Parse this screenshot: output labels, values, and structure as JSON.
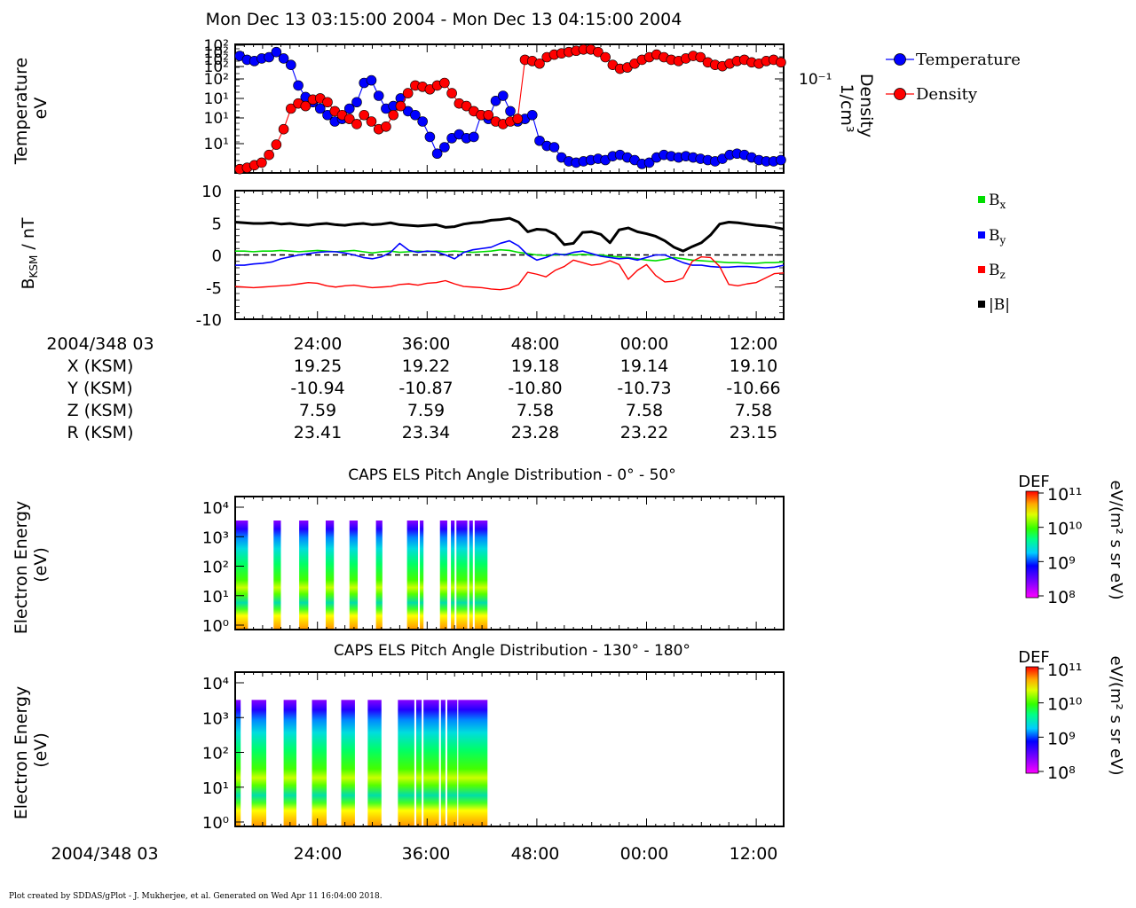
{
  "header": {
    "title": "Mon Dec 13 03:15:00 2004 - Mon Dec 13 04:15:00 2004"
  },
  "footer": {
    "credit": "Plot created by SDDAS/gPlot - J. Mukherjee, et al.  Generated on Wed Apr 11 16:04:00 2018."
  },
  "colors": {
    "temperature": "#0000ff",
    "density": "#ff0000",
    "bx": "#00dd00",
    "by": "#0000ff",
    "bz": "#ff0000",
    "btotal": "#000000"
  },
  "x_axis": {
    "tick_labels": [
      "24:00",
      "36:00",
      "48:00",
      "00:00",
      "12:00"
    ],
    "ephemeris": {
      "start_label": "2004/348 03",
      "rows": [
        {
          "label": "X (KSM)",
          "values": [
            "19.25",
            "19.22",
            "19.18",
            "19.14",
            "19.10"
          ]
        },
        {
          "label": "Y (KSM)",
          "values": [
            "-10.94",
            "-10.87",
            "-10.80",
            "-10.73",
            "-10.66"
          ]
        },
        {
          "label": "Z (KSM)",
          "values": [
            "7.59",
            "7.59",
            "7.58",
            "7.58",
            "7.58"
          ]
        },
        {
          "label": "R (KSM)",
          "values": [
            "23.41",
            "23.34",
            "23.28",
            "23.22",
            "23.15"
          ]
        }
      ]
    },
    "bottom_start_label": "2004/348 03"
  },
  "chart_data": [
    {
      "type": "scatter",
      "panel": "moments",
      "ylabel": "Temperature eV",
      "y2label": "Density 1/cm³",
      "y_tick_labels": [
        "10²",
        "10²",
        "10²",
        "10²",
        "10²",
        "10¹",
        "10¹",
        "10¹"
      ],
      "y2_tick_labels": [
        "10⁻¹"
      ],
      "x_range": [
        15,
        75
      ],
      "legend": {
        "placement": "right",
        "entries": [
          "Temperature",
          "Density"
        ]
      },
      "series": [
        {
          "name": "Temperature",
          "x": [
            15.5,
            16.3,
            17.1,
            17.9,
            18.7,
            19.5,
            20.3,
            21.1,
            21.9,
            22.7,
            23.5,
            24.3,
            25.1,
            25.9,
            26.7,
            27.5,
            28.3,
            29.1,
            29.9,
            30.7,
            31.5,
            32.3,
            33.1,
            33.9,
            34.7,
            35.5,
            36.3,
            37.1,
            37.9,
            38.7,
            39.5,
            40.3,
            41.1,
            41.9,
            42.7,
            43.5,
            44.3,
            45.1,
            45.9,
            46.7,
            47.5,
            48.3,
            49.1,
            49.9,
            50.7,
            51.5,
            52.3,
            53.1,
            53.9,
            54.7,
            55.5,
            56.3,
            57.1,
            57.9,
            58.7,
            59.5,
            60.3,
            61.1,
            61.9,
            62.7,
            63.5,
            64.3,
            65.1,
            65.9,
            66.7,
            67.5,
            68.3,
            69.1,
            69.9,
            70.7,
            71.5,
            72.3,
            73.1,
            73.9,
            74.7
          ],
          "y_rel": [
            0.09,
            0.12,
            0.13,
            0.11,
            0.1,
            0.06,
            0.11,
            0.16,
            0.32,
            0.41,
            0.45,
            0.5,
            0.55,
            0.6,
            0.58,
            0.5,
            0.45,
            0.3,
            0.28,
            0.4,
            0.5,
            0.48,
            0.42,
            0.52,
            0.55,
            0.6,
            0.72,
            0.85,
            0.8,
            0.73,
            0.7,
            0.73,
            0.72,
            0.55,
            0.58,
            0.44,
            0.4,
            0.52,
            0.6,
            0.58,
            0.55,
            0.75,
            0.79,
            0.8,
            0.88,
            0.91,
            0.92,
            0.91,
            0.9,
            0.89,
            0.9,
            0.87,
            0.86,
            0.88,
            0.9,
            0.93,
            0.92,
            0.88,
            0.86,
            0.87,
            0.88,
            0.87,
            0.88,
            0.89,
            0.9,
            0.91,
            0.89,
            0.86,
            0.85,
            0.86,
            0.88,
            0.9,
            0.91,
            0.91,
            0.9
          ]
        },
        {
          "name": "Density",
          "x": [
            15.5,
            16.3,
            17.1,
            17.9,
            18.7,
            19.5,
            20.3,
            21.1,
            21.9,
            22.7,
            23.5,
            24.3,
            25.1,
            25.9,
            26.7,
            27.5,
            28.3,
            29.1,
            29.9,
            30.7,
            31.5,
            32.3,
            33.1,
            33.9,
            34.7,
            35.5,
            36.3,
            37.1,
            37.9,
            38.7,
            39.5,
            40.3,
            41.1,
            41.9,
            42.7,
            43.5,
            44.3,
            45.1,
            45.9,
            46.7,
            47.5,
            48.3,
            49.1,
            49.9,
            50.7,
            51.5,
            52.3,
            53.1,
            53.9,
            54.7,
            55.5,
            56.3,
            57.1,
            57.9,
            58.7,
            59.5,
            60.3,
            61.1,
            61.9,
            62.7,
            63.5,
            64.3,
            65.1,
            65.9,
            66.7,
            67.5,
            68.3,
            69.1,
            69.9,
            70.7,
            71.5,
            72.3,
            73.1,
            73.9,
            74.7
          ],
          "y_rel": [
            0.97,
            0.96,
            0.94,
            0.92,
            0.86,
            0.78,
            0.66,
            0.5,
            0.46,
            0.48,
            0.43,
            0.42,
            0.45,
            0.52,
            0.55,
            0.58,
            0.62,
            0.55,
            0.6,
            0.66,
            0.64,
            0.55,
            0.48,
            0.38,
            0.32,
            0.33,
            0.35,
            0.32,
            0.3,
            0.38,
            0.46,
            0.48,
            0.52,
            0.55,
            0.55,
            0.6,
            0.62,
            0.6,
            0.58,
            0.12,
            0.13,
            0.15,
            0.1,
            0.08,
            0.07,
            0.06,
            0.05,
            0.04,
            0.04,
            0.06,
            0.1,
            0.16,
            0.19,
            0.18,
            0.15,
            0.12,
            0.1,
            0.08,
            0.1,
            0.12,
            0.13,
            0.11,
            0.09,
            0.1,
            0.14,
            0.16,
            0.17,
            0.15,
            0.13,
            0.12,
            0.14,
            0.15,
            0.13,
            0.12,
            0.14
          ]
        }
      ]
    },
    {
      "type": "line",
      "panel": "magnetic-field",
      "ylabel": "B_KSM / nT",
      "ylim": [
        -10,
        10
      ],
      "y_tick_labels": [
        "10",
        "5",
        "0",
        "-5",
        "-10"
      ],
      "legend": {
        "placement": "right",
        "entries": [
          "Bx",
          "By",
          "Bz",
          "|B|"
        ]
      },
      "x": [
        15,
        16,
        17,
        18,
        19,
        20,
        21,
        22,
        23,
        24,
        25,
        26,
        27,
        28,
        29,
        30,
        31,
        32,
        33,
        34,
        35,
        36,
        37,
        38,
        39,
        40,
        41,
        42,
        43,
        44,
        45,
        46,
        47,
        48,
        49,
        50,
        51,
        52,
        53,
        54,
        55,
        56,
        57,
        58,
        59,
        60,
        61,
        62,
        63,
        64,
        65,
        66,
        67,
        68,
        69,
        70,
        71,
        72,
        73,
        74,
        75
      ],
      "series": [
        {
          "name": "Bx",
          "values": [
            0.6,
            0.6,
            0.5,
            0.6,
            0.6,
            0.7,
            0.6,
            0.5,
            0.6,
            0.7,
            0.6,
            0.5,
            0.6,
            0.7,
            0.5,
            0.3,
            0.5,
            0.6,
            0.4,
            0.5,
            0.6,
            0.5,
            0.6,
            0.5,
            0.6,
            0.5,
            0.4,
            0.5,
            0.6,
            0.8,
            0.7,
            0.4,
            0.2,
            0.0,
            -0.1,
            0.0,
            0.1,
            0.0,
            0.1,
            0.0,
            0.0,
            -0.2,
            -0.3,
            -0.4,
            -0.6,
            -0.8,
            -0.9,
            -0.7,
            -0.4,
            -0.6,
            -0.8,
            -0.9,
            -1.0,
            -1.1,
            -1.2,
            -1.2,
            -1.3,
            -1.3,
            -1.2,
            -1.2,
            -1.1
          ]
        },
        {
          "name": "By",
          "values": [
            -1.6,
            -1.6,
            -1.4,
            -1.3,
            -1.1,
            -0.6,
            -0.3,
            0.0,
            0.2,
            0.4,
            0.5,
            0.5,
            0.3,
            0.0,
            -0.4,
            -0.6,
            -0.3,
            0.4,
            1.8,
            0.7,
            0.4,
            0.6,
            0.5,
            0.0,
            -0.6,
            0.4,
            0.8,
            1.0,
            1.2,
            1.8,
            2.2,
            1.4,
            0.0,
            -0.8,
            -0.4,
            0.2,
            0.0,
            0.4,
            0.6,
            0.2,
            -0.2,
            -0.4,
            -0.6,
            -0.5,
            -0.8,
            -0.4,
            0.0,
            0.0,
            -0.6,
            -1.2,
            -1.6,
            -1.6,
            -1.8,
            -1.9,
            -1.9,
            -1.8,
            -1.8,
            -1.9,
            -2.0,
            -1.9,
            -1.6
          ]
        },
        {
          "name": "Bz",
          "values": [
            -4.9,
            -5.0,
            -5.1,
            -5.0,
            -4.9,
            -4.8,
            -4.7,
            -4.5,
            -4.3,
            -4.4,
            -4.8,
            -5.0,
            -4.8,
            -4.7,
            -4.9,
            -5.1,
            -5.0,
            -4.9,
            -4.6,
            -4.5,
            -4.7,
            -4.4,
            -4.3,
            -4.0,
            -4.5,
            -4.9,
            -5.0,
            -5.1,
            -5.3,
            -5.4,
            -5.2,
            -4.6,
            -2.7,
            -3.0,
            -3.4,
            -2.4,
            -1.8,
            -0.8,
            -1.2,
            -1.6,
            -1.4,
            -0.9,
            -1.5,
            -3.8,
            -2.4,
            -1.5,
            -3.2,
            -4.2,
            -4.1,
            -3.6,
            -1.0,
            -0.3,
            -0.4,
            -1.8,
            -4.6,
            -4.8,
            -4.5,
            -4.3,
            -3.6,
            -2.9,
            -2.8
          ]
        },
        {
          "name": "|B|",
          "values": [
            5.1,
            5.0,
            4.9,
            4.9,
            5.0,
            4.8,
            4.9,
            4.7,
            4.6,
            4.8,
            4.9,
            4.7,
            4.6,
            4.8,
            4.9,
            4.7,
            4.8,
            5.0,
            4.7,
            4.6,
            4.5,
            4.6,
            4.7,
            4.3,
            4.4,
            4.8,
            5.0,
            5.1,
            5.4,
            5.5,
            5.7,
            5.1,
            3.6,
            4.0,
            3.9,
            3.2,
            1.6,
            1.8,
            3.5,
            3.6,
            3.2,
            1.9,
            3.9,
            4.2,
            3.6,
            3.3,
            2.9,
            2.2,
            1.2,
            0.6,
            1.3,
            1.9,
            3.1,
            4.8,
            5.1,
            5.0,
            4.8,
            4.6,
            4.5,
            4.3,
            4.0
          ]
        }
      ]
    },
    {
      "type": "heatmap",
      "panel": "els-pad-0-50",
      "title": "CAPS ELS Pitch Angle Distribution - 0° - 50°",
      "ylabel": "Electron Energy (eV)",
      "y_tick_labels": [
        "10⁴",
        "10³",
        "10²",
        "10¹",
        "10⁰"
      ],
      "colorbar": {
        "label": "DEF",
        "unit": "eV/(m² s sr eV)",
        "tick_labels": [
          "10¹¹",
          "10¹⁰",
          "10⁹",
          "10⁸"
        ]
      },
      "coverage_intervals": [
        [
          15.0,
          16.4
        ],
        [
          19.2,
          20.0
        ],
        [
          22.0,
          23.0
        ],
        [
          24.9,
          25.8
        ],
        [
          27.5,
          28.4
        ],
        [
          30.4,
          31.1
        ],
        [
          33.8,
          35.0
        ],
        [
          35.2,
          35.6
        ],
        [
          37.4,
          38.2
        ],
        [
          38.6,
          39.0
        ],
        [
          39.2,
          40.4
        ],
        [
          40.6,
          41.0
        ],
        [
          41.2,
          42.6
        ]
      ]
    },
    {
      "type": "heatmap",
      "panel": "els-pad-130-180",
      "title": "CAPS ELS Pitch Angle Distribution - 130° - 180°",
      "ylabel": "Electron Energy (eV)",
      "y_tick_labels": [
        "10⁴",
        "10³",
        "10²",
        "10¹",
        "10⁰"
      ],
      "colorbar": {
        "label": "DEF",
        "unit": "eV/(m² s sr eV)",
        "tick_labels": [
          "10¹¹",
          "10¹⁰",
          "10⁹",
          "10⁸"
        ]
      },
      "coverage_intervals": [
        [
          15.0,
          15.6
        ],
        [
          16.8,
          18.4
        ],
        [
          20.3,
          21.7
        ],
        [
          23.4,
          25.0
        ],
        [
          26.6,
          28.1
        ],
        [
          29.5,
          31.0
        ],
        [
          32.8,
          34.6
        ],
        [
          34.8,
          35.4
        ],
        [
          35.6,
          37.3
        ],
        [
          37.5,
          38.0
        ],
        [
          38.2,
          39.3
        ],
        [
          39.4,
          42.6
        ]
      ]
    }
  ]
}
